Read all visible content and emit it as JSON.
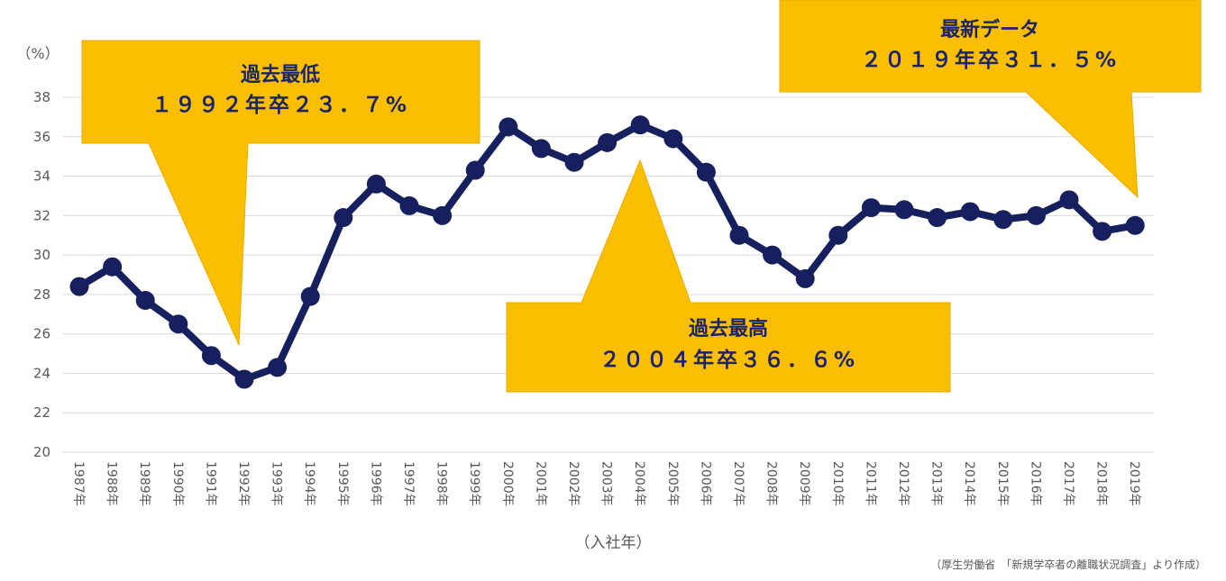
{
  "chart_data": {
    "type": "line",
    "x": [
      "1987年",
      "1988年",
      "1989年",
      "1990年",
      "1991年",
      "1992年",
      "1993年",
      "1994年",
      "1995年",
      "1996年",
      "1997年",
      "1998年",
      "1999年",
      "2000年",
      "2001年",
      "2002年",
      "2003年",
      "2004年",
      "2005年",
      "2006年",
      "2007年",
      "2008年",
      "2009年",
      "2010年",
      "2011年",
      "2012年",
      "2013年",
      "2014年",
      "2015年",
      "2016年",
      "2017年",
      "2018年",
      "2019年"
    ],
    "series": [
      {
        "values": [
          28.4,
          29.4,
          27.7,
          26.5,
          24.9,
          23.7,
          24.3,
          27.9,
          31.9,
          33.6,
          32.5,
          32.0,
          34.3,
          36.5,
          35.4,
          34.7,
          35.7,
          36.6,
          35.9,
          34.2,
          31.0,
          30.0,
          28.8,
          31.0,
          32.4,
          32.3,
          31.9,
          32.2,
          31.8,
          32.0,
          32.8,
          31.2,
          31.5
        ]
      }
    ],
    "ylim": [
      20,
      38
    ],
    "yticks": [
      "20",
      "22",
      "24",
      "26",
      "28",
      "30",
      "32",
      "34",
      "36",
      "38"
    ],
    "yunit": "（%）",
    "xlabel": "（入社年）",
    "source": "（厚生労働省　「新規学卒者の離職状況調査」より作成）",
    "grid": true,
    "line_color": "#16205f",
    "callout_color": "#fcbe00",
    "annotations": [
      {
        "title": "過去最低",
        "text": "１９９２年卒２３．７%"
      },
      {
        "title": "過去最高",
        "text": "２００４年卒３６．６%"
      },
      {
        "title": "最新データ",
        "text": "２０１９年卒３１．５%"
      }
    ]
  }
}
